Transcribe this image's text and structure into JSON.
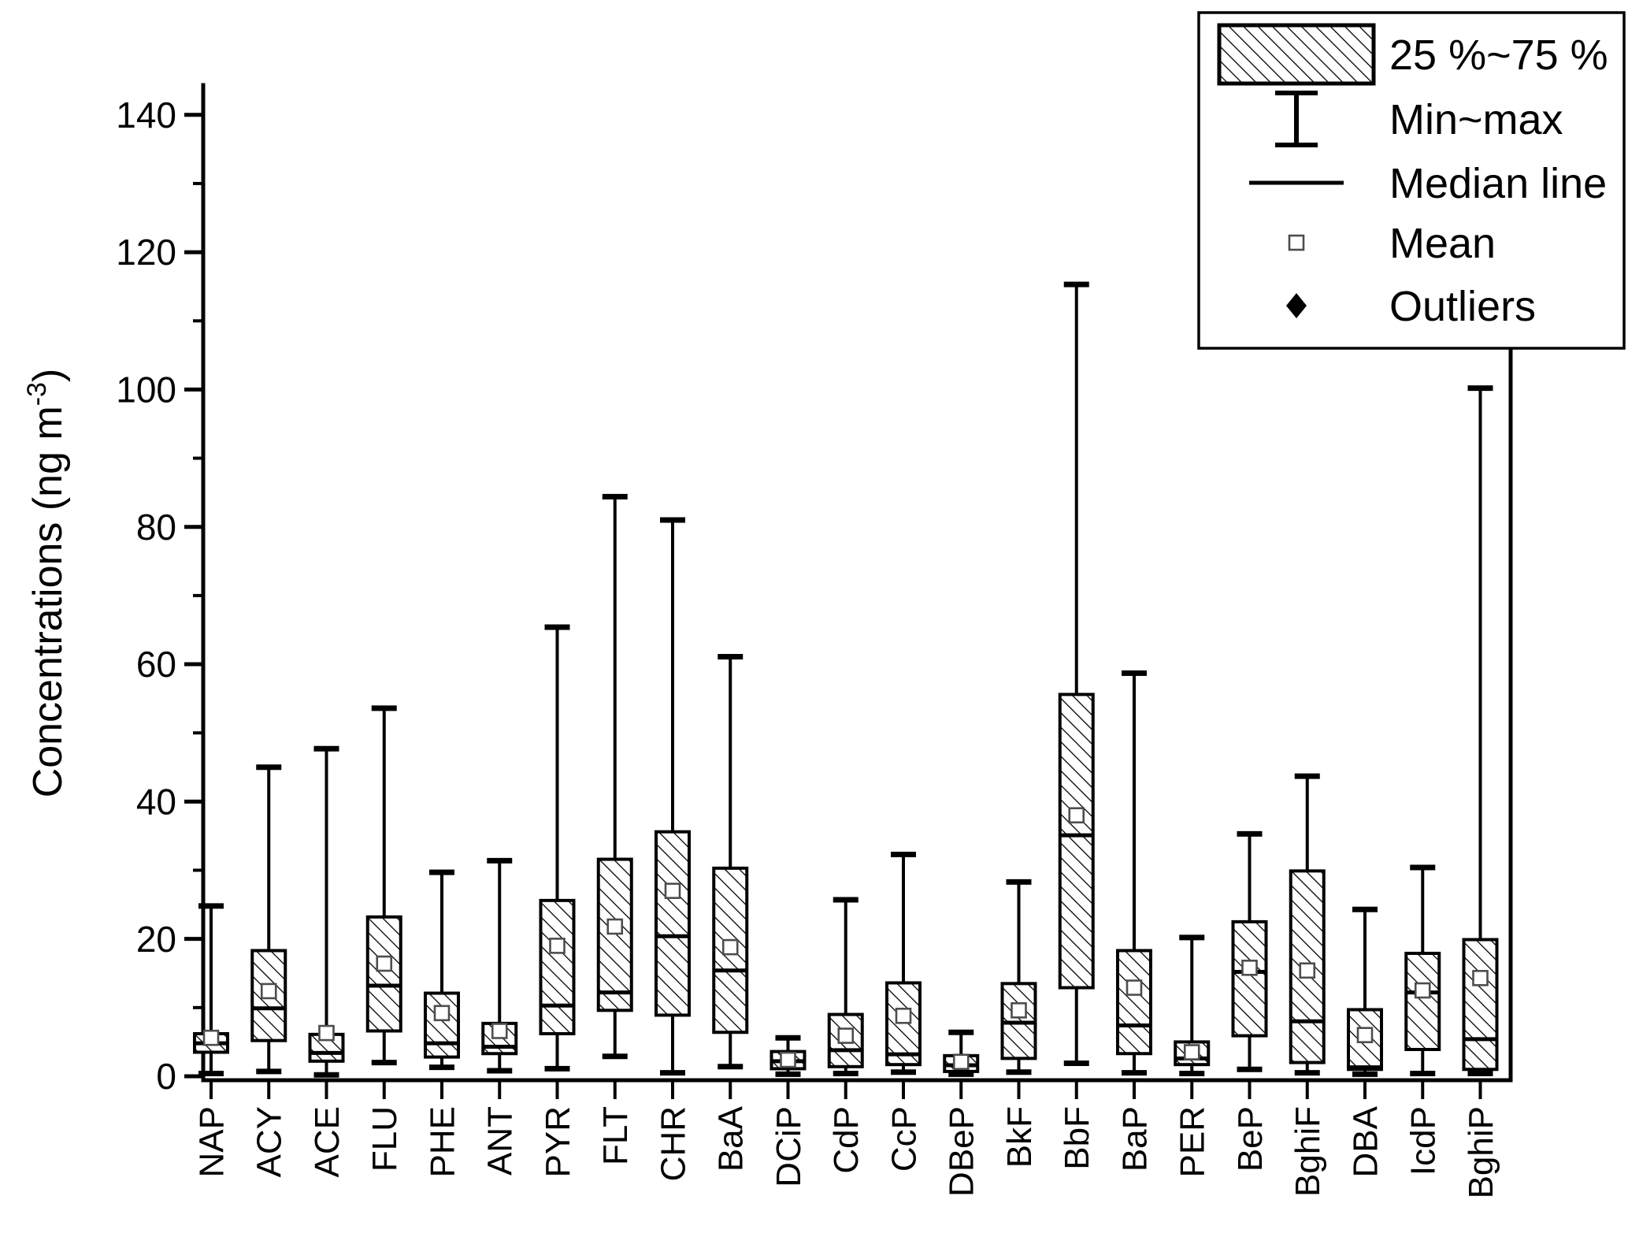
{
  "chart_data": {
    "type": "box",
    "title": "",
    "ylabel_parts": {
      "main": "Concentrations (ng m",
      "sup": "-3",
      "end": ")"
    },
    "ylim": [
      0,
      140
    ],
    "yticks": [
      0,
      20,
      40,
      60,
      80,
      100,
      120,
      140
    ],
    "yminor": [
      10,
      30,
      50,
      70,
      90,
      110,
      130
    ],
    "grid": false,
    "legend_position": "top-right",
    "legend": {
      "box_label": "25 %~75 %",
      "whisker_label": "Min~max",
      "median_label": "Median line",
      "mean_label": "Mean",
      "outlier_label": "Outliers"
    },
    "categories": [
      "NAP",
      "ACY",
      "ACE",
      "FLU",
      "PHE",
      "ANT",
      "PYR",
      "FLT",
      "CHR",
      "BaA",
      "DCiP",
      "CdP",
      "CcP",
      "DBeP",
      "BkF",
      "BbF",
      "BaP",
      "PER",
      "BeP",
      "BghiF",
      "DBA",
      "IcdP",
      "BghiP"
    ],
    "series": [
      {
        "name": "NAP",
        "min": 0.4,
        "q1": 3.5,
        "median": 4.8,
        "q3": 6.2,
        "max": 24.8,
        "mean": 5.6
      },
      {
        "name": "ACY",
        "min": 0.7,
        "q1": 5.2,
        "median": 9.9,
        "q3": 18.3,
        "max": 45.0,
        "mean": 12.4
      },
      {
        "name": "ACE",
        "min": 0.2,
        "q1": 2.2,
        "median": 3.4,
        "q3": 6.1,
        "max": 47.7,
        "mean": 6.3
      },
      {
        "name": "FLU",
        "min": 2.0,
        "q1": 6.6,
        "median": 13.2,
        "q3": 23.2,
        "max": 53.6,
        "mean": 16.4
      },
      {
        "name": "PHE",
        "min": 1.3,
        "q1": 2.8,
        "median": 4.8,
        "q3": 12.1,
        "max": 29.7,
        "mean": 9.2
      },
      {
        "name": "ANT",
        "min": 0.8,
        "q1": 3.3,
        "median": 4.3,
        "q3": 7.7,
        "max": 31.4,
        "mean": 6.6
      },
      {
        "name": "PYR",
        "min": 1.1,
        "q1": 6.2,
        "median": 10.3,
        "q3": 25.6,
        "max": 65.4,
        "mean": 19.0
      },
      {
        "name": "FLT",
        "min": 2.9,
        "q1": 9.6,
        "median": 12.2,
        "q3": 31.6,
        "max": 84.4,
        "mean": 21.8
      },
      {
        "name": "CHR",
        "min": 0.5,
        "q1": 8.9,
        "median": 20.4,
        "q3": 35.6,
        "max": 81.0,
        "mean": 27.0
      },
      {
        "name": "BaA",
        "min": 1.4,
        "q1": 6.4,
        "median": 15.4,
        "q3": 30.3,
        "max": 61.1,
        "mean": 18.8
      },
      {
        "name": "DCiP",
        "min": 0.3,
        "q1": 1.1,
        "median": 2.2,
        "q3": 3.6,
        "max": 5.6,
        "mean": 2.4
      },
      {
        "name": "CdP",
        "min": 0.4,
        "q1": 1.4,
        "median": 3.8,
        "q3": 9.0,
        "max": 25.7,
        "mean": 5.9
      },
      {
        "name": "CcP",
        "min": 0.6,
        "q1": 1.7,
        "median": 3.2,
        "q3": 13.6,
        "max": 32.3,
        "mean": 8.8
      },
      {
        "name": "DBeP",
        "min": 0.3,
        "q1": 0.7,
        "median": 1.6,
        "q3": 3.0,
        "max": 6.4,
        "mean": 2.1
      },
      {
        "name": "BkF",
        "min": 0.6,
        "q1": 2.6,
        "median": 7.8,
        "q3": 13.5,
        "max": 28.3,
        "mean": 9.6
      },
      {
        "name": "BbF",
        "min": 1.9,
        "q1": 12.9,
        "median": 35.1,
        "q3": 55.6,
        "max": 115.3,
        "mean": 38.0
      },
      {
        "name": "BaP",
        "min": 0.5,
        "q1": 3.3,
        "median": 7.4,
        "q3": 18.3,
        "max": 58.7,
        "mean": 12.9
      },
      {
        "name": "PER",
        "min": 0.4,
        "q1": 1.7,
        "median": 2.6,
        "q3": 5.0,
        "max": 20.2,
        "mean": 3.5
      },
      {
        "name": "BeP",
        "min": 1.0,
        "q1": 5.9,
        "median": 15.2,
        "q3": 22.5,
        "max": 35.3,
        "mean": 15.8
      },
      {
        "name": "BghiF",
        "min": 0.5,
        "q1": 2.0,
        "median": 8.0,
        "q3": 29.9,
        "max": 43.7,
        "mean": 15.4
      },
      {
        "name": "DBA",
        "min": 0.3,
        "q1": 1.0,
        "median": 1.3,
        "q3": 9.7,
        "max": 24.3,
        "mean": 6.0
      },
      {
        "name": "IcdP",
        "min": 0.4,
        "q1": 3.9,
        "median": 12.2,
        "q3": 17.9,
        "max": 30.4,
        "mean": 12.5
      },
      {
        "name": "BghiP",
        "min": 0.4,
        "q1": 1.0,
        "median": 5.4,
        "q3": 19.9,
        "max": 100.2,
        "mean": 14.3
      }
    ]
  }
}
